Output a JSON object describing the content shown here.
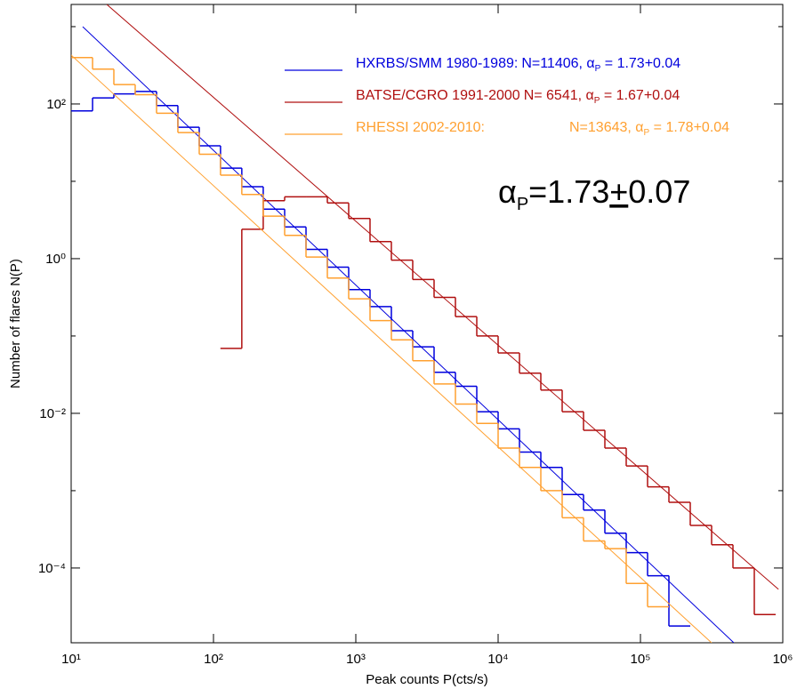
{
  "chart_data": {
    "type": "step",
    "x_label": "Peak counts P(cts/s)",
    "y_label": "Number of flares N(P)",
    "log_x": true,
    "log_y": true,
    "xlim": [
      10,
      1000000
    ],
    "ylim": [
      1.08e-05,
      1936
    ],
    "xticks": [
      {
        "value": 10,
        "label": "10¹"
      },
      {
        "value": 100,
        "label": "10²"
      },
      {
        "value": 1000,
        "label": "10³"
      },
      {
        "value": 10000,
        "label": "10⁴"
      },
      {
        "value": 100000,
        "label": "10⁵"
      },
      {
        "value": 1000000,
        "label": "10⁶"
      }
    ],
    "yticks": [
      {
        "value": 100,
        "label": "10²"
      },
      {
        "value": 1,
        "label": "10⁰"
      },
      {
        "value": 0.01,
        "label": "10⁻²"
      },
      {
        "value": 0.0001,
        "label": "10⁻⁴"
      }
    ],
    "yminorticks": [
      1000,
      10,
      0.1,
      0.001
    ],
    "series": [
      {
        "label_left": "HXRBS/SMM 1980-1989:",
        "label_right": "N=11406, α",
        "label_sub": "P",
        "label_end": " = 1.73+0.04",
        "color": "#0000dd",
        "x": [
          11.9,
          16.8,
          23.7,
          33.5,
          47.3,
          66.8,
          94.4,
          133,
          188,
          266,
          376,
          531,
          750,
          1059,
          1496,
          2113,
          2985,
          4217,
          5957,
          8414,
          11885,
          16788,
          23714,
          33497,
          47315,
          66834,
          94406,
          133352,
          188365
        ],
        "values": [
          81.3,
          120,
          135,
          145,
          95.5,
          50.1,
          28.8,
          14.8,
          8.51,
          4.37,
          2.57,
          1.32,
          0.776,
          0.398,
          0.24,
          0.117,
          0.0724,
          0.0339,
          0.0224,
          0.0105,
          0.00631,
          0.00316,
          0.002,
          0.000891,
          0.000562,
          0.000282,
          0.000158,
          7.94e-05,
          1.78e-05
        ],
        "fit_x": [
          12.05,
          453000
        ],
        "fit_values": [
          1000,
          1.08e-05
        ]
      },
      {
        "label_left": "BATSE/CGRO 1991-2000",
        "label_right": "N= 6541, α",
        "label_sub": "P",
        "label_end": " = 1.67+0.04",
        "color": "#b01010",
        "x": [
          133,
          188,
          266,
          376,
          531,
          750,
          1059,
          1496,
          2113,
          2985,
          4217,
          5957,
          8414,
          11885,
          16788,
          23714,
          33497,
          47315,
          66834,
          94406,
          133352,
          188365,
          266073,
          375837,
          530884,
          749894
        ],
        "values": [
          0.0692,
          2.4,
          5.62,
          6.31,
          6.31,
          5.25,
          3.31,
          1.66,
          0.955,
          0.537,
          0.316,
          0.178,
          0.1,
          0.0603,
          0.0331,
          0.02,
          0.0105,
          0.00603,
          0.00355,
          0.00209,
          0.00112,
          0.000708,
          0.000355,
          0.0002,
          0.0001,
          2.5e-05
        ],
        "fit_x": [
          17.8,
          933000
        ],
        "fit_values": [
          1936,
          5.3e-05
        ]
      },
      {
        "label_left": "RHESSI 2002-2010:",
        "label_right": "N=13643, α",
        "label_sub": "P",
        "label_end": " = 1.78+0.04",
        "color": "#ffa030",
        "x": [
          11.9,
          16.8,
          23.7,
          33.5,
          47.3,
          66.8,
          94.4,
          133,
          188,
          266,
          376,
          531,
          750,
          1059,
          1496,
          2113,
          2985,
          4217,
          5957,
          8414,
          11885,
          16788,
          23714,
          33497,
          47315,
          66834,
          94406,
          133352
        ],
        "values": [
          398,
          282,
          178,
          132,
          75.9,
          42.7,
          22.4,
          12,
          6.76,
          3.55,
          2,
          1.05,
          0.562,
          0.302,
          0.158,
          0.0891,
          0.0479,
          0.024,
          0.0132,
          0.00741,
          0.00355,
          0.002,
          0.001,
          0.000447,
          0.000224,
          0.000178,
          6.31e-05,
          3.16e-05
        ],
        "fit_x": [
          10,
          316000
        ],
        "fit_values": [
          429,
          1.08e-05
        ]
      }
    ],
    "annotation": {
      "symbol": "α",
      "sub": "P",
      "value": "=1.73",
      "pm": "+",
      "error": "0.07"
    }
  }
}
